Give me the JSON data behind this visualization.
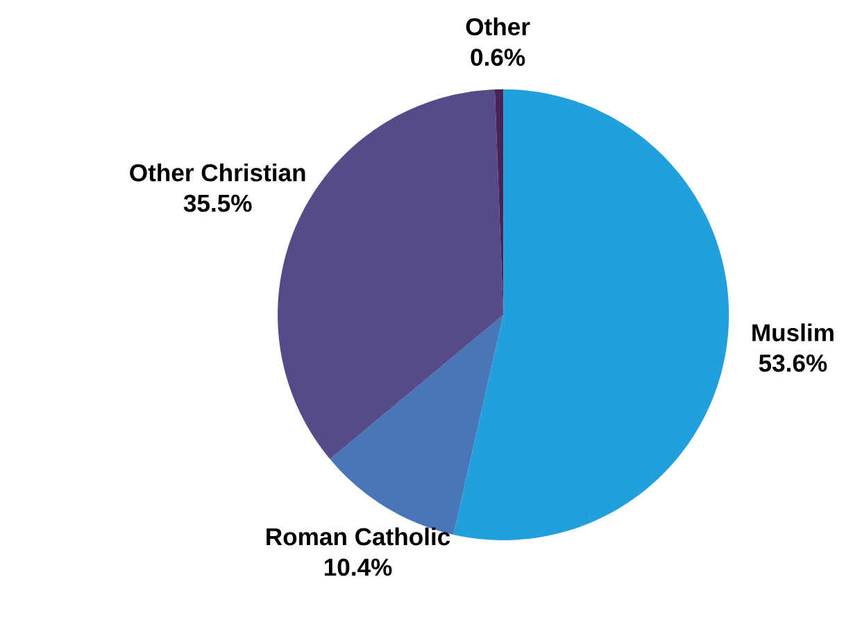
{
  "chart_data": {
    "type": "pie",
    "categories": [
      "Muslim",
      "Roman Catholic",
      "Other Christian",
      "Other"
    ],
    "values": [
      53.6,
      10.4,
      35.5,
      0.6
    ],
    "value_labels": [
      "53.6%",
      "10.4%",
      "35.5%",
      "0.6%"
    ],
    "colors": [
      "#22a0dd",
      "#4876b8",
      "#564b88",
      "#4a2356"
    ]
  }
}
